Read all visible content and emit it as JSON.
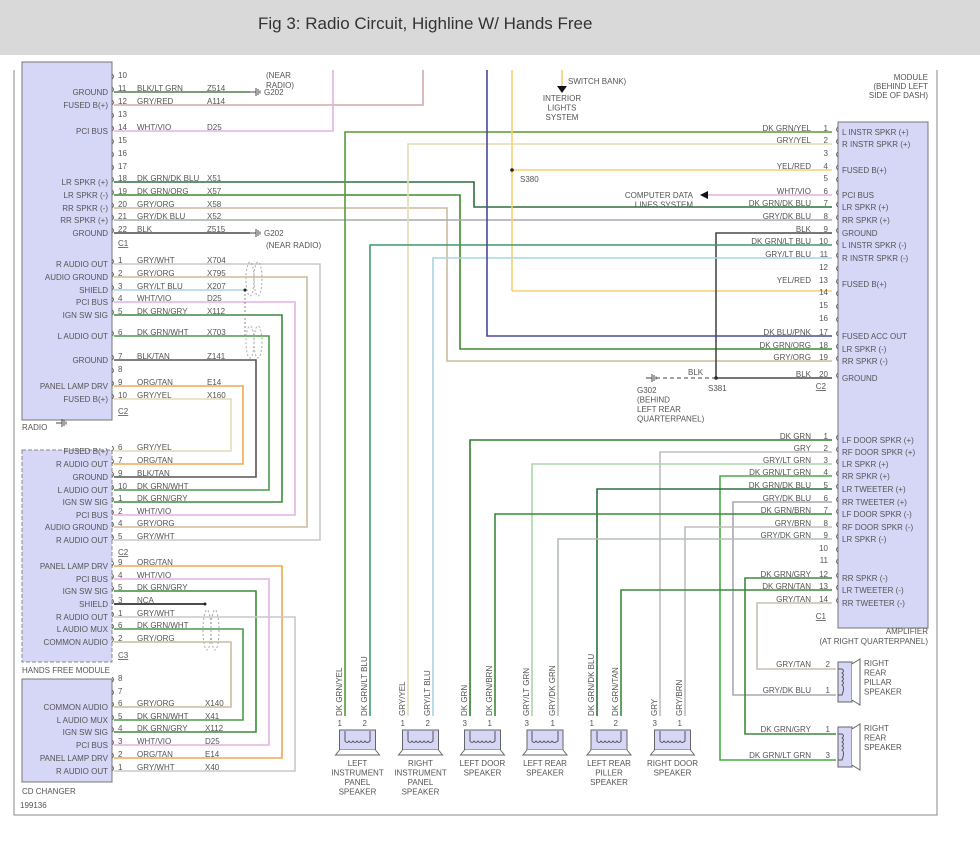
{
  "header": {
    "title": "Fig 3: Radio Circuit, Highline W/ Hands Free"
  },
  "wire_colors": {
    "BLK/LT GRN": "#4f7f4f",
    "GRY/RED": "#d4aaaa",
    "WHT/VIO": "#e2b2e2",
    "DK GRN/DK BLU": "#2f6f3f",
    "DK GRN/ORG": "#3f8a2f",
    "GRY/ORG": "#cdbb9c",
    "GRY/DK BLU": "#a8a8b4",
    "BLK": "#4a4a4a",
    "GRY/WHT": "#c8c8c8",
    "GRY/LT BLU": "#a9d3e3",
    "DK GRN/GRY": "#3d8a3d",
    "DK GRN/WHT": "#4a9a4a",
    "BLK/TAN": "#555555",
    "ORG/TAN": "#f0a850",
    "GRY/YEL": "#e2dcb4",
    "NCA": "#111111",
    "DK GRN/YEL": "#5a9a3a",
    "YEL/RED": "#f5d070",
    "DK GRN/LT BLU": "#3f9a6a",
    "DK BLU/PNK": "#4a4a9a",
    "DK GRN": "#2f7f2f",
    "GRY": "#bdbdbd",
    "GRY/LT GRN": "#acd4ac",
    "DK GRN/LT GRN": "#4aaa4a",
    "DK GRN/BRN": "#3a8a3a",
    "GRY/BRN": "#bdbdbd",
    "GRY/DK GRN": "#b4c0b4",
    "DK GRN/TAN": "#3a8a3a",
    "GRY/TAN": "#c8c0b0"
  },
  "radio": {
    "name": "RADIO",
    "c1": {
      "label": "C1",
      "pins": [
        {
          "pin": "10"
        },
        {
          "pin": "11",
          "func": "GROUND",
          "wire": "BLK/LT GRN",
          "circuit": "Z514"
        },
        {
          "pin": "12",
          "func": "FUSED B(+)",
          "wire": "GRY/RED",
          "circuit": "A114"
        },
        {
          "pin": "13"
        },
        {
          "pin": "14",
          "func": "PCI BUS",
          "wire": "WHT/VIO",
          "circuit": "D25"
        },
        {
          "pin": "15"
        },
        {
          "pin": "16"
        },
        {
          "pin": "17"
        },
        {
          "pin": "18",
          "func": "LR SPKR (+)",
          "wire": "DK GRN/DK BLU",
          "circuit": "X51"
        },
        {
          "pin": "19",
          "func": "LR SPKR (-)",
          "wire": "DK GRN/ORG",
          "circuit": "X57"
        },
        {
          "pin": "20",
          "func": "RR SPKR (-)",
          "wire": "GRY/ORG",
          "circuit": "X58"
        },
        {
          "pin": "21",
          "func": "RR SPKR (+)",
          "wire": "GRY/DK BLU",
          "circuit": "X52"
        },
        {
          "pin": "22",
          "func": "GROUND",
          "wire": "BLK",
          "circuit": "Z515"
        }
      ]
    },
    "c2": {
      "label": "C2",
      "pins": [
        {
          "pin": "1",
          "func": "R AUDIO OUT",
          "wire": "GRY/WHT",
          "circuit": "X704"
        },
        {
          "pin": "2",
          "func": "AUDIO GROUND",
          "wire": "GRY/ORG",
          "circuit": "X795"
        },
        {
          "pin": "3",
          "func": "SHIELD",
          "wire": "GRY/LT BLU",
          "circuit": "X207"
        },
        {
          "pin": "4",
          "func": "PCI BUS",
          "wire": "WHT/VIO",
          "circuit": "D25"
        },
        {
          "pin": "5",
          "func": "IGN SW SIG",
          "wire": "DK GRN/GRY",
          "circuit": "X112"
        },
        {
          "pin": "6",
          "func": "L AUDIO OUT",
          "wire": "DK GRN/WHT",
          "circuit": "X703"
        },
        {
          "pin": "7",
          "func": "GROUND",
          "wire": "BLK/TAN",
          "circuit": "Z141"
        },
        {
          "pin": "8"
        },
        {
          "pin": "9",
          "func": "PANEL LAMP DRV",
          "wire": "ORG/TAN",
          "circuit": "E14"
        },
        {
          "pin": "10",
          "func": "FUSED B(+)",
          "wire": "GRY/YEL",
          "circuit": "X160"
        }
      ]
    },
    "grounds": [
      {
        "id": "G202",
        "note_top": "(NEAR",
        "note_top2": "RADIO)"
      },
      {
        "id": "G202",
        "note": "(NEAR RADIO)"
      }
    ]
  },
  "hands_free": {
    "name": "HANDS FREE MODULE",
    "c2": {
      "label": "C2",
      "pins": [
        {
          "pin": "6",
          "func": "FUSED B(+)",
          "wire": "GRY/YEL"
        },
        {
          "pin": "7",
          "func": "R AUDIO OUT",
          "wire": "ORG/TAN"
        },
        {
          "pin": "9",
          "func": "GROUND",
          "wire": "BLK/TAN"
        },
        {
          "pin": "10",
          "func": "L AUDIO OUT",
          "wire": "DK GRN/WHT"
        },
        {
          "pin": "1",
          "func": "IGN SW SIG",
          "wire": "DK GRN/GRY"
        },
        {
          "pin": "2",
          "func": "PCI BUS",
          "wire": "WHT/VIO"
        },
        {
          "pin": "4",
          "func": "AUDIO GROUND",
          "wire": "GRY/ORG"
        },
        {
          "pin": "5",
          "func": "R AUDIO OUT",
          "wire": "GRY/WHT"
        }
      ]
    },
    "c3": {
      "label": "C3",
      "pins": [
        {
          "pin": "9",
          "func": "PANEL LAMP DRV",
          "wire": "ORG/TAN"
        },
        {
          "pin": "4",
          "func": "PCI BUS",
          "wire": "WHT/VIO"
        },
        {
          "pin": "5",
          "func": "IGN SW SIG",
          "wire": "DK GRN/GRY"
        },
        {
          "pin": "3",
          "func": "SHIELD",
          "wire": "NCA"
        },
        {
          "pin": "1",
          "func": "R AUDIO OUT",
          "wire": "GRY/WHT"
        },
        {
          "pin": "6",
          "func": "L AUDIO MUX",
          "wire": "DK GRN/WHT"
        },
        {
          "pin": "2",
          "func": "COMMON AUDIO",
          "wire": "GRY/ORG"
        }
      ]
    }
  },
  "cd_changer": {
    "name": "CD CHANGER",
    "pins": [
      {
        "pin": "8"
      },
      {
        "pin": "7"
      },
      {
        "pin": "6",
        "func": "COMMON AUDIO",
        "wire": "GRY/ORG",
        "circuit": "X140"
      },
      {
        "pin": "5",
        "func": "L AUDIO MUX",
        "wire": "DK GRN/WHT",
        "circuit": "X41"
      },
      {
        "pin": "4",
        "func": "IGN SW SIG",
        "wire": "DK GRN/GRY",
        "circuit": "X112"
      },
      {
        "pin": "3",
        "func": "PCI BUS",
        "wire": "WHT/VIO",
        "circuit": "D25"
      },
      {
        "pin": "2",
        "func": "PANEL LAMP DRV",
        "wire": "ORG/TAN",
        "circuit": "E14"
      },
      {
        "pin": "1",
        "func": "R AUDIO OUT",
        "wire": "GRY/WHT",
        "circuit": "X40"
      }
    ]
  },
  "figure_id": "199136",
  "amplifier": {
    "name": "AMPLIFIER",
    "location": "(AT RIGHT QUARTERPANEL)",
    "module_note": [
      "MODULE",
      "(BEHIND LEFT",
      "SIDE OF DASH)"
    ],
    "c2": {
      "label": "C2",
      "pins": [
        {
          "pin": "1",
          "func": "L INSTR SPKR (+)",
          "wire": "DK GRN/YEL"
        },
        {
          "pin": "2",
          "func": "R INSTR SPKR (+)",
          "wire": "GRY/YEL"
        },
        {
          "pin": "3"
        },
        {
          "pin": "4",
          "func": "FUSED B(+)",
          "wire": "YEL/RED"
        },
        {
          "pin": "5"
        },
        {
          "pin": "6",
          "func": "PCI BUS",
          "wire": "WHT/VIO"
        },
        {
          "pin": "7",
          "func": "LR SPKR (+)",
          "wire": "DK GRN/DK BLU"
        },
        {
          "pin": "8",
          "func": "RR SPKR (+)",
          "wire": "GRY/DK BLU"
        },
        {
          "pin": "9",
          "func": "GROUND",
          "wire": "BLK"
        },
        {
          "pin": "10",
          "func": "L INSTR SPKR (-)",
          "wire": "DK GRN/LT BLU"
        },
        {
          "pin": "11",
          "func": "R INSTR SPKR (-)",
          "wire": "GRY/LT BLU"
        },
        {
          "pin": "12"
        },
        {
          "pin": "13",
          "func": "FUSED B(+)",
          "wire": "YEL/RED"
        },
        {
          "pin": "14"
        },
        {
          "pin": "15"
        },
        {
          "pin": "16"
        },
        {
          "pin": "17",
          "func": "FUSED ACC OUT",
          "wire": "DK BLU/PNK"
        },
        {
          "pin": "18",
          "func": "LR SPKR (-)",
          "wire": "DK GRN/ORG"
        },
        {
          "pin": "19",
          "func": "RR SPKR (-)",
          "wire": "GRY/ORG"
        },
        {
          "pin": "20",
          "func": "GROUND",
          "wire": "BLK"
        }
      ]
    },
    "c1": {
      "label": "C1",
      "pins": [
        {
          "pin": "1",
          "func": "LF DOOR SPKR (+)",
          "wire": "DK GRN"
        },
        {
          "pin": "2",
          "func": "RF DOOR SPKR (+)",
          "wire": "GRY"
        },
        {
          "pin": "3",
          "func": "LR SPKR (+)",
          "wire": "GRY/LT GRN"
        },
        {
          "pin": "4",
          "func": "RR SPKR (+)",
          "wire": "DK GRN/LT GRN"
        },
        {
          "pin": "5",
          "func": "LR TWEETER (+)",
          "wire": "DK GRN/DK BLU"
        },
        {
          "pin": "6",
          "func": "RR TWEETER (+)",
          "wire": "GRY/DK BLU"
        },
        {
          "pin": "7",
          "func": "LF DOOR SPKR (-)",
          "wire": "DK GRN/BRN"
        },
        {
          "pin": "8",
          "func": "RF DOOR SPKR (-)",
          "wire": "GRY/BRN"
        },
        {
          "pin": "9",
          "func": "LR SPKR (-)",
          "wire": "GRY/DK GRN"
        },
        {
          "pin": "10"
        },
        {
          "pin": "11"
        },
        {
          "pin": "12",
          "func": "RR SPKR (-)",
          "wire": "DK GRN/GRY"
        },
        {
          "pin": "13",
          "func": "LR TWEETER (-)",
          "wire": "DK GRN/TAN"
        },
        {
          "pin": "14",
          "func": "RR TWEETER (-)",
          "wire": "GRY/TAN"
        }
      ]
    }
  },
  "splices": {
    "s380": "S380",
    "s381": "S381",
    "s381_wire": "BLK"
  },
  "ground_g302": [
    "G302",
    "(BEHIND",
    "LEFT REAR",
    "QUARTERPANEL)"
  ],
  "interior_lights": {
    "ref": "SWITCH BANK)",
    "lines": [
      "INTERIOR",
      "LIGHTS",
      "SYSTEM"
    ]
  },
  "computer_data": [
    "COMPUTER DATA",
    "LINES SYSTEM"
  ],
  "speakers": [
    {
      "name": [
        "LEFT",
        "INSTRUMENT",
        "PANEL",
        "SPEAKER"
      ],
      "pins": [
        {
          "pin": "1",
          "wire": "DK GRN/YEL"
        },
        {
          "pin": "2",
          "wire": "DK GRN/LT BLU"
        }
      ]
    },
    {
      "name": [
        "RIGHT",
        "INSTRUMENT",
        "PANEL",
        "SPEAKER"
      ],
      "pins": [
        {
          "pin": "1",
          "wire": "GRY/YEL"
        },
        {
          "pin": "2",
          "wire": "GRY/LT BLU"
        }
      ]
    },
    {
      "name": [
        "LEFT DOOR",
        "SPEAKER"
      ],
      "pins": [
        {
          "pin": "3",
          "wire": "DK GRN"
        },
        {
          "pin": "1",
          "wire": "DK GRN/BRN"
        }
      ]
    },
    {
      "name": [
        "LEFT REAR",
        "SPEAKER"
      ],
      "pins": [
        {
          "pin": "3",
          "wire": "GRY/LT GRN"
        },
        {
          "pin": "1",
          "wire": "GRY/DK GRN"
        }
      ]
    },
    {
      "name": [
        "LEFT REAR",
        "PILLER",
        "SPEAKER"
      ],
      "pins": [
        {
          "pin": "1",
          "wire": "DK GRN/DK BLU"
        },
        {
          "pin": "2",
          "wire": "DK GRN/TAN"
        }
      ]
    },
    {
      "name": [
        "RIGHT DOOR",
        "SPEAKER"
      ],
      "pins": [
        {
          "pin": "3",
          "wire": "GRY"
        },
        {
          "pin": "1",
          "wire": "GRY/BRN"
        }
      ]
    }
  ],
  "right_speakers": [
    {
      "name": [
        "RIGHT",
        "REAR",
        "PILLAR",
        "SPEAKER"
      ],
      "pins": [
        {
          "pin": "2",
          "wire": "GRY/TAN"
        },
        {
          "pin": "1",
          "wire": "GRY/DK BLU"
        }
      ]
    },
    {
      "name": [
        "RIGHT",
        "REAR",
        "SPEAKER"
      ],
      "pins": [
        {
          "pin": "1",
          "wire": "DK GRN/GRY"
        },
        {
          "pin": "3",
          "wire": "DK GRN/LT GRN"
        }
      ]
    }
  ]
}
